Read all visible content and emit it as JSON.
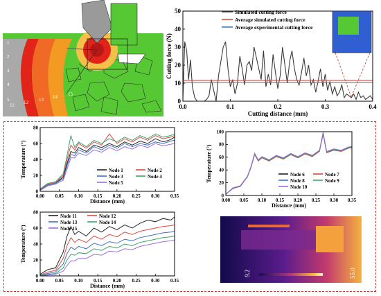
{
  "simulation_view": {
    "zone_numbers": [
      "1",
      "2",
      "3",
      "4",
      "5",
      "11",
      "12",
      "13",
      "14",
      "15"
    ],
    "colors": {
      "background": "#56c834",
      "hot": "#e2231a",
      "warm": "#f39a22",
      "workpiece": "#a9a9a9"
    }
  },
  "thermal_image": {
    "scale_min": "9.2",
    "scale_max": "55.0"
  },
  "chart_data": [
    {
      "id": "cutting-force",
      "type": "line",
      "xlabel": "Cutting distance (mm)",
      "ylabel": "Cutting force (N)",
      "xlim": [
        0,
        0.4
      ],
      "ylim": [
        0,
        50
      ],
      "xticks": [
        "0.0",
        "0.1",
        "0.2",
        "0.3",
        "0.4"
      ],
      "yticks": [
        "0",
        "10",
        "20",
        "30",
        "40",
        "50"
      ],
      "legend_position": "top-center",
      "series": [
        {
          "name": "Simulated cutting force",
          "color": "#3a3a3a",
          "x": [
            0,
            0.004,
            0.008,
            0.012,
            0.016,
            0.02,
            0.025,
            0.03,
            0.035,
            0.04,
            0.045,
            0.05,
            0.055,
            0.06,
            0.065,
            0.07,
            0.075,
            0.08,
            0.085,
            0.09,
            0.095,
            0.1,
            0.105,
            0.11,
            0.115,
            0.12,
            0.125,
            0.13,
            0.135,
            0.14,
            0.145,
            0.15,
            0.155,
            0.16,
            0.165,
            0.17,
            0.175,
            0.18,
            0.185,
            0.19,
            0.195,
            0.2,
            0.205,
            0.21,
            0.215,
            0.22,
            0.225,
            0.23,
            0.235,
            0.24,
            0.245,
            0.25,
            0.255,
            0.26,
            0.265,
            0.27,
            0.275,
            0.28,
            0.285,
            0.29,
            0.295,
            0.3,
            0.305,
            0.31,
            0.315,
            0.32,
            0.325,
            0.33,
            0.335,
            0.34,
            0.345,
            0.35,
            0.355,
            0.36,
            0.365,
            0.37,
            0.375,
            0.38,
            0.385,
            0.39,
            0.395,
            0.4
          ],
          "y": [
            1,
            33,
            28,
            12,
            23,
            8,
            2,
            0,
            0,
            0,
            0,
            1,
            3,
            12,
            6,
            0,
            14,
            22,
            30,
            33,
            18,
            8,
            12,
            4,
            10,
            25,
            18,
            9,
            20,
            22,
            17,
            30,
            24,
            18,
            12,
            28,
            8,
            15,
            9,
            26,
            16,
            7,
            14,
            30,
            20,
            10,
            22,
            28,
            18,
            12,
            9,
            16,
            24,
            14,
            20,
            9,
            12,
            5,
            11,
            18,
            8,
            15,
            6,
            11,
            4,
            8,
            3,
            5,
            9,
            2,
            4,
            3,
            2,
            4,
            1,
            5,
            2,
            3,
            1,
            2,
            3,
            1
          ]
        },
        {
          "name": "Average simulated cutting force",
          "color": "#e3483e",
          "x": [
            0,
            0.4
          ],
          "y": [
            11.5,
            11.5
          ]
        },
        {
          "name": "Average experimental cutting force",
          "color": "#3f78c8",
          "x": [
            0,
            0.4
          ],
          "y": [
            10.2,
            10.2
          ]
        }
      ]
    },
    {
      "id": "temperature-nodes-1-5",
      "type": "line",
      "xlabel": "Distance (mm)",
      "ylabel": "Temperature (°)",
      "xlim": [
        0,
        0.35
      ],
      "ylim": [
        0,
        80
      ],
      "xticks": [
        "0.00",
        "0.05",
        "0.10",
        "0.15",
        "0.20",
        "0.25",
        "0.30",
        "0.35"
      ],
      "yticks": [
        "0",
        "20",
        "40",
        "60",
        "80"
      ],
      "series": [
        {
          "name": "Node 1",
          "color": "#222222",
          "x": [
            0,
            0.02,
            0.04,
            0.06,
            0.07,
            0.08,
            0.09,
            0.1,
            0.12,
            0.14,
            0.16,
            0.18,
            0.2,
            0.22,
            0.24,
            0.26,
            0.28,
            0.3,
            0.32,
            0.34,
            0.35
          ],
          "y": [
            2,
            8,
            10,
            18,
            35,
            50,
            48,
            55,
            50,
            58,
            55,
            60,
            56,
            62,
            58,
            63,
            60,
            66,
            62,
            65,
            68
          ]
        },
        {
          "name": "Node 2",
          "color": "#e0473b",
          "x": [
            0,
            0.02,
            0.04,
            0.06,
            0.07,
            0.08,
            0.09,
            0.1,
            0.12,
            0.14,
            0.16,
            0.18,
            0.2,
            0.22,
            0.24,
            0.26,
            0.28,
            0.3,
            0.32,
            0.34,
            0.35
          ],
          "y": [
            3,
            9,
            11,
            20,
            40,
            58,
            52,
            60,
            54,
            62,
            58,
            72,
            60,
            66,
            62,
            68,
            64,
            70,
            66,
            68,
            70
          ]
        },
        {
          "name": "Node 3",
          "color": "#3c6fc8",
          "x": [
            0,
            0.02,
            0.04,
            0.06,
            0.07,
            0.08,
            0.09,
            0.1,
            0.12,
            0.14,
            0.16,
            0.18,
            0.2,
            0.22,
            0.24,
            0.26,
            0.28,
            0.3,
            0.32,
            0.34,
            0.35
          ],
          "y": [
            2,
            8,
            10,
            16,
            32,
            46,
            45,
            52,
            48,
            56,
            52,
            58,
            54,
            60,
            56,
            60,
            58,
            62,
            60,
            63,
            64
          ]
        },
        {
          "name": "Node 4",
          "color": "#3aa46d",
          "x": [
            0,
            0.02,
            0.04,
            0.06,
            0.07,
            0.08,
            0.09,
            0.1,
            0.12,
            0.14,
            0.16,
            0.18,
            0.2,
            0.22,
            0.24,
            0.26,
            0.28,
            0.3,
            0.32,
            0.34,
            0.35
          ],
          "y": [
            3,
            10,
            12,
            22,
            45,
            70,
            55,
            62,
            56,
            64,
            60,
            66,
            62,
            68,
            64,
            70,
            66,
            72,
            68,
            70,
            72
          ]
        },
        {
          "name": "Node 5",
          "color": "#9a6de0",
          "x": [
            0,
            0.02,
            0.04,
            0.06,
            0.07,
            0.08,
            0.09,
            0.1,
            0.12,
            0.14,
            0.16,
            0.18,
            0.2,
            0.22,
            0.24,
            0.26,
            0.28,
            0.3,
            0.32,
            0.34,
            0.35
          ],
          "y": [
            1,
            7,
            9,
            14,
            28,
            42,
            42,
            48,
            45,
            52,
            49,
            55,
            51,
            56,
            53,
            58,
            55,
            60,
            57,
            59,
            60
          ]
        }
      ]
    },
    {
      "id": "temperature-nodes-6-10",
      "type": "line",
      "xlabel": "Distance (mm)",
      "ylabel": "Temperature (°)",
      "xlim": [
        0,
        0.35
      ],
      "ylim": [
        0,
        100
      ],
      "xticks": [
        "0.00",
        "0.05",
        "0.10",
        "0.15",
        "0.20",
        "0.25",
        "0.30",
        "0.35"
      ],
      "yticks": [
        "0",
        "20",
        "40",
        "60",
        "80",
        "100"
      ],
      "series": [
        {
          "name": "Node 6",
          "color": "#222222",
          "x": [
            0,
            0.02,
            0.04,
            0.06,
            0.07,
            0.08,
            0.09,
            0.1,
            0.12,
            0.14,
            0.16,
            0.18,
            0.2,
            0.22,
            0.24,
            0.26,
            0.27,
            0.28,
            0.3,
            0.32,
            0.34,
            0.35
          ],
          "y": [
            2,
            12,
            15,
            30,
            45,
            65,
            55,
            60,
            55,
            62,
            58,
            65,
            60,
            66,
            62,
            70,
            98,
            68,
            72,
            70,
            75,
            76
          ]
        },
        {
          "name": "Node 7",
          "color": "#e0473b",
          "x": [
            0,
            0.02,
            0.04,
            0.06,
            0.07,
            0.08,
            0.09,
            0.1,
            0.12,
            0.14,
            0.16,
            0.18,
            0.2,
            0.22,
            0.24,
            0.26,
            0.27,
            0.28,
            0.3,
            0.32,
            0.34,
            0.35
          ],
          "y": [
            2,
            11,
            14,
            29,
            44,
            64,
            54,
            59,
            54,
            61,
            57,
            64,
            59,
            65,
            61,
            69,
            96,
            67,
            71,
            69,
            74,
            75
          ]
        },
        {
          "name": "Node 8",
          "color": "#3c6fc8",
          "x": [
            0,
            0.02,
            0.04,
            0.06,
            0.07,
            0.08,
            0.09,
            0.1,
            0.12,
            0.14,
            0.16,
            0.18,
            0.2,
            0.22,
            0.24,
            0.26,
            0.27,
            0.28,
            0.3,
            0.32,
            0.34,
            0.35
          ],
          "y": [
            2,
            12,
            15,
            30,
            45,
            66,
            55,
            60,
            55,
            62,
            58,
            65,
            60,
            66,
            62,
            70,
            97,
            68,
            72,
            70,
            75,
            76
          ]
        },
        {
          "name": "Node 9",
          "color": "#3aa46d",
          "x": [
            0,
            0.02,
            0.04,
            0.06,
            0.07,
            0.08,
            0.09,
            0.1,
            0.12,
            0.14,
            0.16,
            0.18,
            0.2,
            0.22,
            0.24,
            0.26,
            0.27,
            0.28,
            0.3,
            0.32,
            0.34,
            0.35
          ],
          "y": [
            2,
            11,
            15,
            29,
            45,
            65,
            55,
            60,
            55,
            62,
            58,
            65,
            60,
            66,
            62,
            70,
            97,
            68,
            72,
            70,
            75,
            76
          ]
        },
        {
          "name": "Node 10",
          "color": "#9a6de0",
          "x": [
            0,
            0.02,
            0.04,
            0.06,
            0.07,
            0.08,
            0.09,
            0.1,
            0.12,
            0.14,
            0.16,
            0.18,
            0.2,
            0.22,
            0.24,
            0.26,
            0.27,
            0.28,
            0.3,
            0.32,
            0.34,
            0.35
          ],
          "y": [
            2,
            12,
            15,
            30,
            46,
            66,
            56,
            61,
            56,
            63,
            59,
            66,
            61,
            67,
            63,
            71,
            99,
            69,
            73,
            71,
            76,
            77
          ]
        }
      ]
    },
    {
      "id": "temperature-nodes-11-15",
      "type": "line",
      "xlabel": "Distance (mm)",
      "ylabel": "Temperature (°)",
      "xlim": [
        0,
        0.35
      ],
      "ylim": [
        0,
        80
      ],
      "xticks": [
        "0.00",
        "0.05",
        "0.10",
        "0.15",
        "0.20",
        "0.25",
        "0.30",
        "0.35"
      ],
      "yticks": [
        "0",
        "20",
        "40",
        "60",
        "80"
      ],
      "series": [
        {
          "name": "Node 11",
          "color": "#222222",
          "x": [
            0,
            0.02,
            0.04,
            0.06,
            0.07,
            0.08,
            0.09,
            0.1,
            0.12,
            0.14,
            0.16,
            0.18,
            0.2,
            0.22,
            0.24,
            0.26,
            0.28,
            0.3,
            0.32,
            0.34,
            0.35
          ],
          "y": [
            2,
            8,
            10,
            30,
            50,
            62,
            52,
            56,
            50,
            60,
            55,
            62,
            58,
            64,
            60,
            66,
            70,
            68,
            72,
            70,
            74
          ]
        },
        {
          "name": "Node 12",
          "color": "#e0473b",
          "x": [
            0,
            0.02,
            0.04,
            0.06,
            0.07,
            0.08,
            0.09,
            0.1,
            0.12,
            0.14,
            0.16,
            0.18,
            0.2,
            0.22,
            0.24,
            0.26,
            0.28,
            0.3,
            0.32,
            0.34,
            0.35
          ],
          "y": [
            1,
            5,
            7,
            22,
            38,
            48,
            42,
            46,
            42,
            50,
            46,
            52,
            49,
            55,
            52,
            56,
            58,
            60,
            62,
            63,
            64
          ]
        },
        {
          "name": "Node 13",
          "color": "#3c6fc8",
          "x": [
            0,
            0.02,
            0.04,
            0.06,
            0.07,
            0.08,
            0.09,
            0.1,
            0.12,
            0.14,
            0.16,
            0.18,
            0.2,
            0.22,
            0.24,
            0.26,
            0.28,
            0.3,
            0.32,
            0.34,
            0.35
          ],
          "y": [
            1,
            3,
            5,
            15,
            28,
            36,
            33,
            37,
            34,
            41,
            38,
            43,
            41,
            46,
            44,
            48,
            50,
            52,
            54,
            55,
            56
          ]
        },
        {
          "name": "Node 14",
          "color": "#3aa46d",
          "x": [
            0,
            0.02,
            0.04,
            0.06,
            0.07,
            0.08,
            0.09,
            0.1,
            0.12,
            0.14,
            0.16,
            0.18,
            0.2,
            0.22,
            0.24,
            0.26,
            0.28,
            0.3,
            0.32,
            0.34,
            0.35
          ],
          "y": [
            0,
            2,
            3,
            10,
            20,
            27,
            26,
            29,
            28,
            34,
            32,
            37,
            35,
            40,
            38,
            42,
            44,
            46,
            48,
            49,
            50
          ]
        },
        {
          "name": "Node 15",
          "color": "#9a6de0",
          "x": [
            0,
            0.02,
            0.04,
            0.06,
            0.07,
            0.08,
            0.09,
            0.1,
            0.12,
            0.14,
            0.16,
            0.18,
            0.2,
            0.22,
            0.24,
            0.26,
            0.28,
            0.3,
            0.32,
            0.34,
            0.35
          ],
          "y": [
            0,
            1,
            2,
            6,
            13,
            19,
            19,
            22,
            22,
            27,
            26,
            31,
            30,
            34,
            33,
            37,
            39,
            41,
            43,
            44,
            45
          ]
        }
      ]
    }
  ]
}
